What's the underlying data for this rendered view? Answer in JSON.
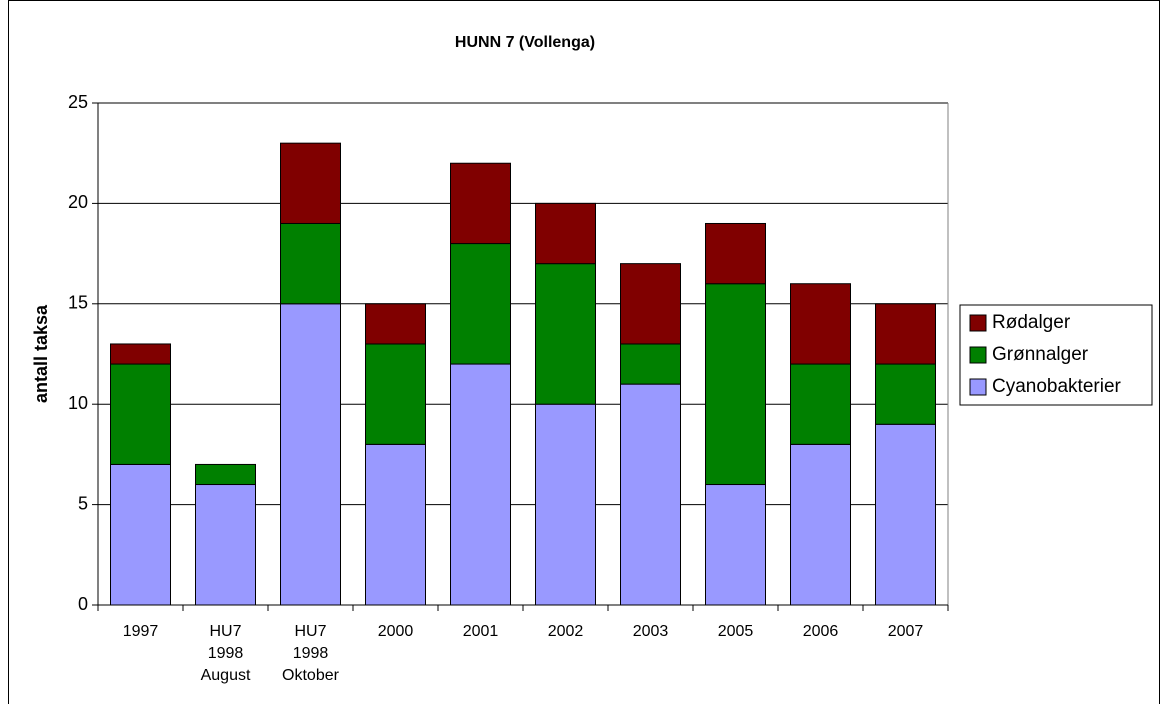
{
  "chart_data": {
    "type": "stacked_bar",
    "title": "HUNN 7 (Vollenga)",
    "y_label": "antall taksa",
    "categories": [
      [
        "1997"
      ],
      [
        "HU7",
        "1998",
        "August"
      ],
      [
        "HU7",
        "1998",
        "Oktober"
      ],
      [
        "2000"
      ],
      [
        "2001"
      ],
      [
        "2002"
      ],
      [
        "2003"
      ],
      [
        "2005"
      ],
      [
        "2006"
      ],
      [
        "2007"
      ]
    ],
    "series": [
      {
        "name": "Cyanobakterier",
        "color": "#9999ff",
        "values": [
          7,
          6,
          15,
          8,
          12,
          10,
          11,
          6,
          8,
          9
        ]
      },
      {
        "name": "Grønnalger",
        "color": "#008000",
        "values": [
          5,
          1,
          4,
          5,
          6,
          7,
          2,
          10,
          4,
          3
        ]
      },
      {
        "name": "Rødalger",
        "color": "#800000",
        "values": [
          1,
          0,
          4,
          2,
          4,
          3,
          4,
          3,
          4,
          3
        ]
      }
    ],
    "ylim": [
      0,
      25
    ],
    "yticks": [
      0,
      5,
      10,
      15,
      20,
      25
    ],
    "grid": true,
    "legend": "right"
  }
}
